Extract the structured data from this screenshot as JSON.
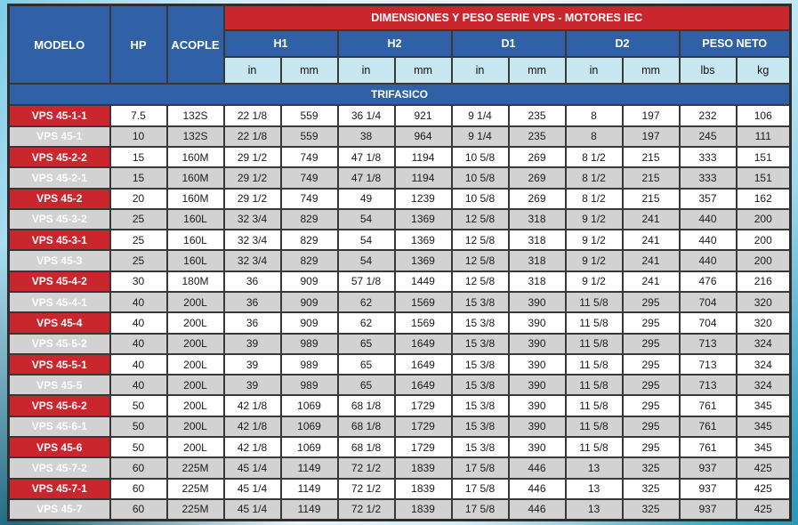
{
  "table": {
    "banner_title": "DIMENSIONES Y PESO SERIE VPS - MOTORES IEC",
    "fixed_columns": [
      "MODELO",
      "HP",
      "ACOPLE"
    ],
    "groups": [
      {
        "label": "H1",
        "units": [
          "in",
          "mm"
        ]
      },
      {
        "label": "H2",
        "units": [
          "in",
          "mm"
        ]
      },
      {
        "label": "D1",
        "units": [
          "in",
          "mm"
        ]
      },
      {
        "label": "D2",
        "units": [
          "in",
          "mm"
        ]
      },
      {
        "label": "PESO NETO",
        "units": [
          "lbs",
          "kg"
        ]
      }
    ],
    "section": "TRIFASICO",
    "rows": [
      [
        "VPS 45-1-1",
        "7.5",
        "132S",
        "22 1/8",
        "559",
        "36 1/4",
        "921",
        "9 1/4",
        "235",
        "8",
        "197",
        "232",
        "106"
      ],
      [
        "VPS 45-1",
        "10",
        "132S",
        "22 1/8",
        "559",
        "38",
        "964",
        "9 1/4",
        "235",
        "8",
        "197",
        "245",
        "111"
      ],
      [
        "VPS 45-2-2",
        "15",
        "160M",
        "29 1/2",
        "749",
        "47 1/8",
        "1194",
        "10 5/8",
        "269",
        "8 1/2",
        "215",
        "333",
        "151"
      ],
      [
        "VPS 45-2-1",
        "15",
        "160M",
        "29 1/2",
        "749",
        "47 1/8",
        "1194",
        "10 5/8",
        "269",
        "8 1/2",
        "215",
        "333",
        "151"
      ],
      [
        "VPS 45-2",
        "20",
        "160M",
        "29 1/2",
        "749",
        "49",
        "1239",
        "10 5/8",
        "269",
        "8 1/2",
        "215",
        "357",
        "162"
      ],
      [
        "VPS 45-3-2",
        "25",
        "160L",
        "32 3/4",
        "829",
        "54",
        "1369",
        "12 5/8",
        "318",
        "9 1/2",
        "241",
        "440",
        "200"
      ],
      [
        "VPS 45-3-1",
        "25",
        "160L",
        "32 3/4",
        "829",
        "54",
        "1369",
        "12 5/8",
        "318",
        "9 1/2",
        "241",
        "440",
        "200"
      ],
      [
        "VPS 45-3",
        "25",
        "160L",
        "32 3/4",
        "829",
        "54",
        "1369",
        "12 5/8",
        "318",
        "9 1/2",
        "241",
        "440",
        "200"
      ],
      [
        "VPS 45-4-2",
        "30",
        "180M",
        "36",
        "909",
        "57 1/8",
        "1449",
        "12 5/8",
        "318",
        "9 1/2",
        "241",
        "476",
        "216"
      ],
      [
        "VPS 45-4-1",
        "40",
        "200L",
        "36",
        "909",
        "62",
        "1569",
        "15 3/8",
        "390",
        "11 5/8",
        "295",
        "704",
        "320"
      ],
      [
        "VPS 45-4",
        "40",
        "200L",
        "36",
        "909",
        "62",
        "1569",
        "15 3/8",
        "390",
        "11 5/8",
        "295",
        "704",
        "320"
      ],
      [
        "VPS 45-5-2",
        "40",
        "200L",
        "39",
        "989",
        "65",
        "1649",
        "15 3/8",
        "390",
        "11 5/8",
        "295",
        "713",
        "324"
      ],
      [
        "VPS 45-5-1",
        "40",
        "200L",
        "39",
        "989",
        "65",
        "1649",
        "15 3/8",
        "390",
        "11 5/8",
        "295",
        "713",
        "324"
      ],
      [
        "VPS 45-5",
        "40",
        "200L",
        "39",
        "989",
        "65",
        "1649",
        "15 3/8",
        "390",
        "11 5/8",
        "295",
        "713",
        "324"
      ],
      [
        "VPS 45-6-2",
        "50",
        "200L",
        "42 1/8",
        "1069",
        "68 1/8",
        "1729",
        "15 3/8",
        "390",
        "11 5/8",
        "295",
        "761",
        "345"
      ],
      [
        "VPS 45-6-1",
        "50",
        "200L",
        "42 1/8",
        "1069",
        "68 1/8",
        "1729",
        "15 3/8",
        "390",
        "11 5/8",
        "295",
        "761",
        "345"
      ],
      [
        "VPS 45-6",
        "50",
        "200L",
        "42 1/8",
        "1069",
        "68 1/8",
        "1729",
        "15 3/8",
        "390",
        "11 5/8",
        "295",
        "761",
        "345"
      ],
      [
        "VPS 45-7-2",
        "60",
        "225M",
        "45 1/4",
        "1149",
        "72 1/2",
        "1839",
        "17 5/8",
        "446",
        "13",
        "325",
        "937",
        "425"
      ],
      [
        "VPS 45-7-1",
        "60",
        "225M",
        "45 1/4",
        "1149",
        "72 1/2",
        "1839",
        "17 5/8",
        "446",
        "13",
        "325",
        "937",
        "425"
      ],
      [
        "VPS 45-7",
        "60",
        "225M",
        "45 1/4",
        "1149",
        "72 1/2",
        "1839",
        "17 5/8",
        "446",
        "13",
        "325",
        "937",
        "425"
      ]
    ]
  },
  "colors": {
    "banner_red": "#c9262e",
    "header_blue": "#3060a6",
    "unit_light_blue": "#c7e8f0",
    "row_alt_gray": "#d2d2d2",
    "border": "#383838"
  }
}
